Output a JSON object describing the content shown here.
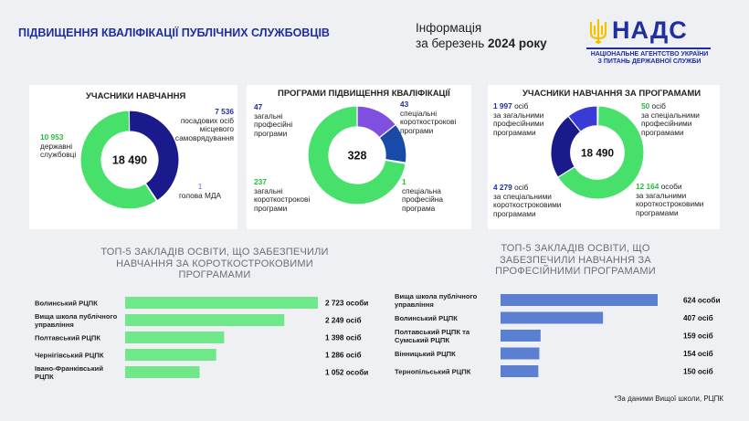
{
  "header": {
    "title": "ПІДВИЩЕННЯ КВАЛІФІКАЦІЇ ПУБЛІЧНИХ СЛУЖБОВЦІВ",
    "info_line1": "Інформація",
    "info_line2_prefix": "за березень ",
    "info_line2_bold": "2024 року",
    "logo_text": "НАДС",
    "logo_sub1": "НАЦІОНАЛЬНЕ АГЕНТСТВО УКРАЇНИ",
    "logo_sub2": "З ПИТАНЬ ДЕРЖАВНОЇ СЛУЖБИ"
  },
  "colors": {
    "green": "#47e06a",
    "navy": "#1a1a8c",
    "blue": "#3a3ad6",
    "bar_green": "#6fe88a",
    "bar_blue": "#5b7fd1"
  },
  "card1": {
    "title": "УЧАСНИКИ НАВЧАННЯ",
    "center": "18 490",
    "labels": [
      {
        "num": "10 953",
        "text1": "державні",
        "text2": "службовці"
      },
      {
        "num": "7 536",
        "text1": "посадових осіб",
        "text2": "місцевого",
        "text3": "самоврядування"
      },
      {
        "num": "1",
        "text1": "голова МДА"
      }
    ]
  },
  "card2": {
    "title": "ПРОГРАМИ ПІДВИЩЕННЯ КВАЛІФІКАЦІЇ",
    "center": "328",
    "labels": [
      {
        "num": "47",
        "text1": "загальні",
        "text2": "професійні",
        "text3": "програми"
      },
      {
        "num": "43",
        "text1": "спеціальні",
        "text2": "короткострокові",
        "text3": "програми"
      },
      {
        "num": "237",
        "text1": "загальні",
        "text2": "короткострокові",
        "text3": "програми"
      },
      {
        "num": "1",
        "text1": "спеціальна",
        "text2": "професійна",
        "text3": "програма"
      }
    ]
  },
  "card3": {
    "title": "УЧАСНИКИ НАВЧАННЯ ЗА ПРОГРАМАМИ",
    "center": "18 490",
    "labels": [
      {
        "num": "1 997",
        "unit": " осіб",
        "text1": "за загальними",
        "text2": "професійними",
        "text3": "програмами"
      },
      {
        "num": "50",
        "unit": " осіб",
        "text1": "за спеціальними",
        "text2": "професійними",
        "text3": "програмами"
      },
      {
        "num": "4 279",
        "unit": " осіб",
        "text1": "за спеціальними",
        "text2": "короткостроковими",
        "text3": "програмами"
      },
      {
        "num": "12 164",
        "unit": " особи",
        "text1": "за загальними",
        "text2": "короткостроковими",
        "text3": "програмами"
      }
    ]
  },
  "section_left": {
    "line1": "ТОП-5 ЗАКЛАДІВ ОСВІТИ, ЩО ЗАБЕЗПЕЧИЛИ",
    "line2": "НАВЧАННЯ ЗА КОРОТКОСТРОКОВИМИ",
    "line3": "ПРОГРАМАМИ"
  },
  "section_right": {
    "line1": "ТОП-5 ЗАКЛАДІВ ОСВІТИ, ЩО",
    "line2": "ЗАБЕЗПЕЧИЛИ НАВЧАННЯ ЗА",
    "line3": "ПРОФЕСІЙНИМИ ПРОГРАМАМИ"
  },
  "note": "*За даними Вищої школи, РЦПК",
  "chart_data": [
    {
      "type": "pie",
      "title": "УЧАСНИКИ НАВЧАННЯ",
      "center_label": "18 490",
      "categories": [
        "державні службовці",
        "посадових осіб місцевого самоврядування",
        "голова МДА"
      ],
      "values": [
        10953,
        7536,
        1
      ],
      "colors": [
        "#47e06a",
        "#1a1a8c",
        "#3a3ad6"
      ]
    },
    {
      "type": "pie",
      "title": "ПРОГРАМИ ПІДВИЩЕННЯ КВАЛІФІКАЦІЇ",
      "center_label": "328",
      "categories": [
        "загальні короткострокові програми",
        "загальні професійні програми",
        "спеціальні короткострокові програми",
        "спеціальна професійна програма"
      ],
      "values": [
        237,
        47,
        43,
        1
      ],
      "colors": [
        "#47e06a",
        "#7f4fe0",
        "#1a4aa8",
        "#1a1a8c"
      ]
    },
    {
      "type": "pie",
      "title": "УЧАСНИКИ НАВЧАННЯ ЗА ПРОГРАМАМИ",
      "center_label": "18 490",
      "categories": [
        "за загальними короткостроковими програмами",
        "за загальними професійними програмами",
        "за спеціальними короткостроковими програмами",
        "за спеціальними професійними програмами"
      ],
      "values": [
        12164,
        1997,
        4279,
        50
      ],
      "colors": [
        "#47e06a",
        "#3a3ad6",
        "#1a1a8c",
        "#2a9c3a"
      ]
    },
    {
      "type": "bar",
      "orientation": "horizontal",
      "categories": [
        "Волинський РЦПК",
        "Вища школа публічного управління",
        "Полтавський РЦПК",
        "Чернігівський РЦПК",
        "Івано-Франківський РЦПК"
      ],
      "values": [
        2723,
        2249,
        1398,
        1286,
        1052
      ],
      "value_labels": [
        "2 723 особи",
        "2 249 осіб",
        "1 398 осіб",
        "1 286 осіб",
        "1 052 особи"
      ],
      "xlim": [
        0,
        2723
      ]
    },
    {
      "type": "bar",
      "orientation": "horizontal",
      "categories": [
        "Вища школа публічного управління",
        "Волинський РЦПК",
        "Полтавський РЦПК та Сумський РЦПК",
        "Вінницький РЦПК",
        "Тернопільський РЦПК"
      ],
      "values": [
        624,
        407,
        159,
        154,
        150
      ],
      "value_labels": [
        "624 особи",
        "407 осіб",
        "159 осіб",
        "154 осіб",
        "150 осіб"
      ],
      "xlim": [
        0,
        624
      ]
    }
  ]
}
